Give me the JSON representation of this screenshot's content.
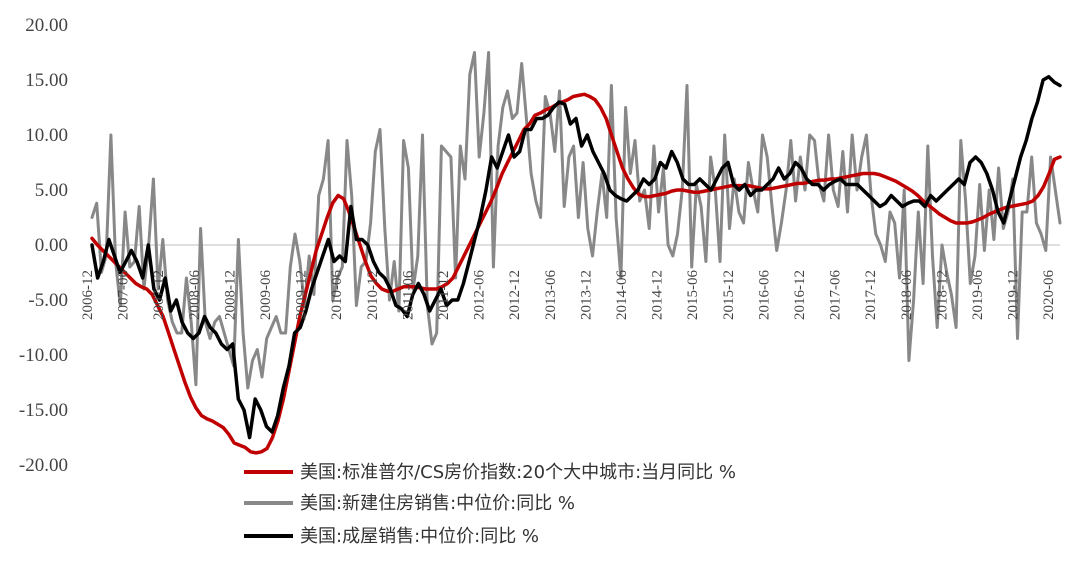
{
  "chart_data": {
    "type": "line",
    "yticks": [
      "20.00",
      "15.00",
      "10.00",
      "5.00",
      "0.00",
      "-5.00",
      "-10.00",
      "-15.00",
      "-20.00"
    ],
    "ylim": [
      -20,
      20
    ],
    "xticks": [
      "2006-12",
      "2007-06",
      "2007-12",
      "2008-06",
      "2008-12",
      "2009-06",
      "2009-12",
      "2010-06",
      "2010-12",
      "2011-06",
      "2011-12",
      "2012-06",
      "2012-12",
      "2013-06",
      "2013-12",
      "2014-06",
      "2014-12",
      "2015-06",
      "2015-12",
      "2016-06",
      "2016-12",
      "2017-06",
      "2017-12",
      "2018-06",
      "2018-12",
      "2019-06",
      "2019-12",
      "2020-06"
    ],
    "grid": false,
    "legend_position": "bottom-center",
    "series": [
      {
        "name": "美国:标准普尔/CS房价指数:20个大中城市:当月同比 %",
        "color": "#c00000",
        "values": [
          0.6,
          0.0,
          -0.5,
          -1.0,
          -1.5,
          -2.0,
          -2.5,
          -3.0,
          -3.5,
          -3.8,
          -4.0,
          -4.5,
          -5.5,
          -6.5,
          -8.0,
          -9.5,
          -11.0,
          -12.5,
          -13.8,
          -14.8,
          -15.5,
          -15.8,
          -16.0,
          -16.3,
          -16.6,
          -17.2,
          -18.0,
          -18.2,
          -18.4,
          -18.8,
          -18.9,
          -18.8,
          -18.5,
          -17.5,
          -16.0,
          -14.0,
          -11.5,
          -9.0,
          -6.5,
          -4.5,
          -2.5,
          -0.5,
          1.0,
          2.5,
          3.8,
          4.5,
          4.2,
          3.0,
          1.5,
          0.0,
          -1.5,
          -2.8,
          -3.5,
          -4.0,
          -4.2,
          -4.2,
          -4.0,
          -3.8,
          -3.8,
          -3.8,
          -3.9,
          -4.0,
          -4.0,
          -4.0,
          -3.8,
          -3.5,
          -3.0,
          -2.0,
          -1.0,
          0.0,
          1.0,
          2.0,
          3.0,
          4.0,
          5.2,
          6.5,
          7.5,
          8.5,
          9.5,
          10.5,
          11.0,
          11.8,
          12.0,
          12.3,
          12.5,
          12.8,
          13.0,
          13.2,
          13.5,
          13.6,
          13.7,
          13.5,
          13.2,
          12.5,
          11.5,
          10.0,
          8.5,
          7.0,
          6.0,
          5.2,
          4.6,
          4.4,
          4.4,
          4.5,
          4.6,
          4.7,
          4.9,
          5.0,
          5.0,
          4.9,
          4.8,
          4.8,
          4.9,
          5.0,
          5.1,
          5.2,
          5.3,
          5.4,
          5.4,
          5.4,
          5.4,
          5.3,
          5.2,
          5.1,
          5.1,
          5.2,
          5.3,
          5.4,
          5.5,
          5.6,
          5.6,
          5.7,
          5.8,
          5.9,
          5.9,
          6.0,
          6.0,
          6.1,
          6.2,
          6.3,
          6.4,
          6.5,
          6.5,
          6.5,
          6.4,
          6.2,
          6.0,
          5.8,
          5.5,
          5.2,
          4.9,
          4.5,
          4.0,
          3.6,
          3.2,
          2.8,
          2.5,
          2.2,
          2.0,
          2.0,
          2.0,
          2.1,
          2.3,
          2.5,
          2.8,
          3.0,
          3.2,
          3.4,
          3.5,
          3.6,
          3.7,
          3.8,
          4.0,
          4.5,
          5.3,
          6.5,
          7.8,
          8.0
        ]
      },
      {
        "name": "美国:新建住房销售:中位价:同比 %",
        "color": "#888888",
        "values": [
          2.5,
          3.8,
          -2.5,
          -1.0,
          10.0,
          -1.5,
          -5.5,
          3.0,
          -2.0,
          -1.5,
          3.5,
          -4.0,
          0.0,
          6.0,
          -4.0,
          0.5,
          -5.0,
          -7.0,
          -8.0,
          -8.0,
          -3.0,
          -7.0,
          -12.7,
          1.5,
          -7.0,
          -8.5,
          -7.0,
          -6.5,
          -8.0,
          -9.5,
          -11.0,
          0.5,
          -8.0,
          -13.0,
          -10.5,
          -9.5,
          -12.0,
          -8.5,
          -7.5,
          -6.5,
          -8.0,
          -8.0,
          -2.0,
          1.0,
          -1.5,
          -5.5,
          -1.0,
          -4.5,
          4.5,
          6.0,
          9.5,
          -5.0,
          -3.0,
          -2.0,
          9.5,
          4.5,
          -5.5,
          -2.0,
          -1.5,
          2.0,
          8.5,
          10.5,
          1.5,
          -5.0,
          -1.5,
          -6.0,
          9.5,
          7.0,
          -4.0,
          -1.0,
          10.0,
          -5.5,
          -9.0,
          -8.0,
          9.0,
          8.5,
          8.0,
          -3.0,
          9.0,
          6.0,
          15.5,
          17.5,
          8.0,
          12.0,
          17.5,
          -2.0,
          9.0,
          12.5,
          14.0,
          11.5,
          12.0,
          16.5,
          11.5,
          6.5,
          4.0,
          2.5,
          13.5,
          12.0,
          8.5,
          14.0,
          3.5,
          8.0,
          9.0,
          2.5,
          7.5,
          1.5,
          -1.0,
          3.0,
          6.5,
          2.5,
          14.5,
          2.5,
          -3.0,
          12.5,
          6.5,
          9.5,
          4.0,
          5.0,
          1.5,
          9.0,
          3.0,
          7.0,
          0.0,
          -1.0,
          1.0,
          5.0,
          14.5,
          -2.0,
          5.5,
          3.5,
          -1.5,
          8.0,
          5.0,
          -1.5,
          10.0,
          1.5,
          6.0,
          3.0,
          2.0,
          7.5,
          5.0,
          3.0,
          10.0,
          8.0,
          3.5,
          -0.5,
          2.0,
          5.0,
          9.5,
          4.0,
          8.0,
          5.0,
          10.0,
          9.5,
          5.5,
          4.0,
          10.0,
          5.0,
          3.5,
          8.5,
          3.0,
          10.0,
          5.0,
          8.0,
          10.0,
          4.5,
          1.0,
          0.0,
          -1.5,
          3.0,
          2.0,
          -3.0,
          5.0,
          -10.5,
          -5.0,
          3.0,
          -3.5,
          9.0,
          -1.0,
          -7.5,
          0.0,
          -2.5,
          -4.5,
          -7.5,
          9.5,
          4.0,
          -3.5,
          -1.0,
          5.5,
          -0.5,
          5.0,
          0.5,
          7.0,
          1.5,
          3.0,
          6.0,
          -8.5,
          3.0,
          3.0,
          8.0,
          2.0,
          1.0,
          -0.5,
          8.0,
          5.0,
          2.0
        ]
      },
      {
        "name": "美国:成屋销售:中位价:同比 %",
        "color": "#000000",
        "values": [
          0.0,
          -3.0,
          -1.5,
          0.5,
          -1.0,
          -2.5,
          -1.5,
          -0.5,
          -1.5,
          -3.0,
          0.0,
          -4.0,
          -5.0,
          -3.0,
          -6.0,
          -5.0,
          -7.0,
          -8.0,
          -8.5,
          -8.0,
          -6.5,
          -7.5,
          -8.0,
          -9.0,
          -9.5,
          -9.0,
          -14.0,
          -15.0,
          -17.5,
          -14.0,
          -15.0,
          -16.5,
          -17.0,
          -15.5,
          -13.0,
          -11.0,
          -8.0,
          -7.5,
          -6.0,
          -4.0,
          -2.5,
          -1.0,
          0.5,
          -1.5,
          -1.0,
          -1.5,
          3.5,
          0.5,
          0.5,
          0.0,
          -1.5,
          -2.5,
          -3.0,
          -4.0,
          -5.5,
          -5.8,
          -6.5,
          -4.5,
          -3.5,
          -4.5,
          -6.0,
          -5.0,
          -4.0,
          -5.5,
          -5.0,
          -5.0,
          -3.5,
          -1.5,
          0.5,
          2.5,
          5.0,
          8.0,
          7.0,
          8.5,
          10.0,
          8.0,
          8.5,
          10.5,
          10.5,
          11.5,
          11.5,
          11.8,
          12.5,
          13.0,
          12.8,
          11.0,
          11.5,
          9.0,
          10.0,
          8.5,
          7.5,
          6.5,
          5.0,
          4.5,
          4.2,
          4.0,
          4.5,
          5.0,
          6.0,
          5.5,
          6.0,
          7.5,
          7.0,
          8.5,
          7.5,
          6.0,
          5.5,
          5.5,
          6.0,
          5.5,
          5.0,
          6.0,
          7.0,
          7.5,
          5.5,
          5.0,
          5.5,
          4.5,
          5.0,
          5.0,
          5.5,
          6.0,
          7.0,
          6.0,
          6.5,
          7.5,
          7.0,
          6.0,
          5.5,
          5.5,
          5.0,
          5.5,
          5.8,
          6.0,
          5.5,
          5.5,
          5.5,
          5.0,
          4.5,
          4.0,
          3.5,
          3.8,
          4.5,
          4.0,
          3.5,
          3.8,
          4.0,
          4.0,
          3.5,
          4.5,
          4.0,
          4.5,
          5.0,
          5.5,
          6.0,
          5.5,
          7.5,
          8.0,
          7.5,
          6.5,
          5.0,
          3.0,
          2.0,
          4.0,
          6.0,
          8.0,
          9.5,
          11.5,
          13.0,
          15.0,
          15.3,
          14.8,
          14.5
        ]
      }
    ]
  }
}
